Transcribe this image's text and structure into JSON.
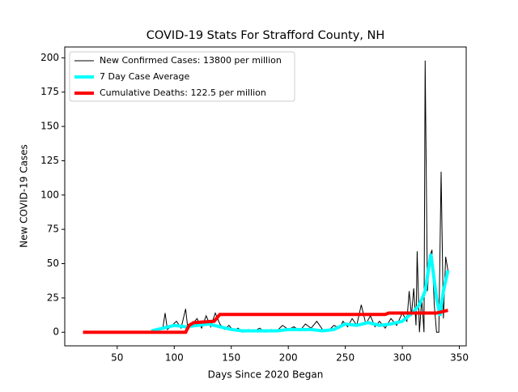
{
  "chart_data": {
    "type": "line",
    "title": "COVID-19 Stats For Strafford County, NH",
    "xlabel": "Days Since 2020 Began",
    "ylabel": "New COVID-19 Cases",
    "xlim": [
      4,
      356
    ],
    "xticks": [
      50,
      100,
      150,
      200,
      250,
      300,
      350
    ],
    "ylim": [
      -9.9,
      207.9
    ],
    "yticks": [
      0,
      25,
      50,
      75,
      100,
      125,
      150,
      175,
      200
    ],
    "legend": "upper left",
    "series": [
      {
        "name": "New Confirmed Cases: 13800 per million",
        "color": "#000000",
        "width": 1,
        "x": [
          80,
          85,
          90,
          92,
          94,
          98,
          102,
          106,
          110,
          112,
          116,
          120,
          124,
          128,
          132,
          136,
          140,
          144,
          148,
          152,
          156,
          160,
          165,
          170,
          175,
          180,
          185,
          190,
          195,
          200,
          205,
          210,
          215,
          220,
          225,
          230,
          235,
          240,
          245,
          248,
          252,
          256,
          260,
          264,
          268,
          272,
          276,
          280,
          285,
          290,
          295,
          300,
          304,
          306,
          308,
          310,
          312,
          313,
          315,
          317,
          319,
          320,
          322,
          324,
          326,
          328,
          330,
          332,
          334,
          336,
          338,
          340
        ],
        "values": [
          0,
          2,
          3,
          14,
          2,
          5,
          8,
          3,
          17,
          2,
          6,
          10,
          3,
          12,
          4,
          14,
          6,
          2,
          5,
          1,
          3,
          0,
          2,
          1,
          3,
          0,
          2,
          1,
          5,
          2,
          4,
          1,
          6,
          3,
          8,
          2,
          1,
          5,
          3,
          8,
          4,
          10,
          5,
          20,
          6,
          12,
          4,
          8,
          3,
          10,
          5,
          14,
          8,
          30,
          12,
          32,
          5,
          59,
          0,
          25,
          0,
          198,
          30,
          55,
          60,
          20,
          0,
          0,
          117,
          10,
          55,
          45
        ]
      },
      {
        "name": "7 Day Case Average",
        "color": "#00ffff",
        "width": 4,
        "x": [
          80,
          90,
          100,
          110,
          120,
          130,
          140,
          150,
          160,
          170,
          180,
          190,
          200,
          210,
          220,
          230,
          240,
          250,
          260,
          270,
          280,
          290,
          300,
          310,
          315,
          320,
          325,
          330,
          333,
          336,
          340
        ],
        "values": [
          1,
          3,
          5,
          4,
          5,
          6,
          4,
          2,
          1,
          1,
          1,
          1,
          2,
          2,
          2,
          1,
          2,
          6,
          5,
          7,
          5,
          6,
          8,
          15,
          20,
          30,
          57,
          25,
          12,
          30,
          45
        ]
      },
      {
        "name": "Cumulative Deaths: 122.5 per million",
        "color": "#ff0000",
        "width": 4,
        "x": [
          20,
          110,
          113,
          117,
          135,
          140,
          285,
          288,
          330,
          335,
          340
        ],
        "values": [
          0,
          0,
          5,
          7,
          8,
          13,
          13,
          14,
          14,
          15,
          16
        ]
      }
    ]
  }
}
